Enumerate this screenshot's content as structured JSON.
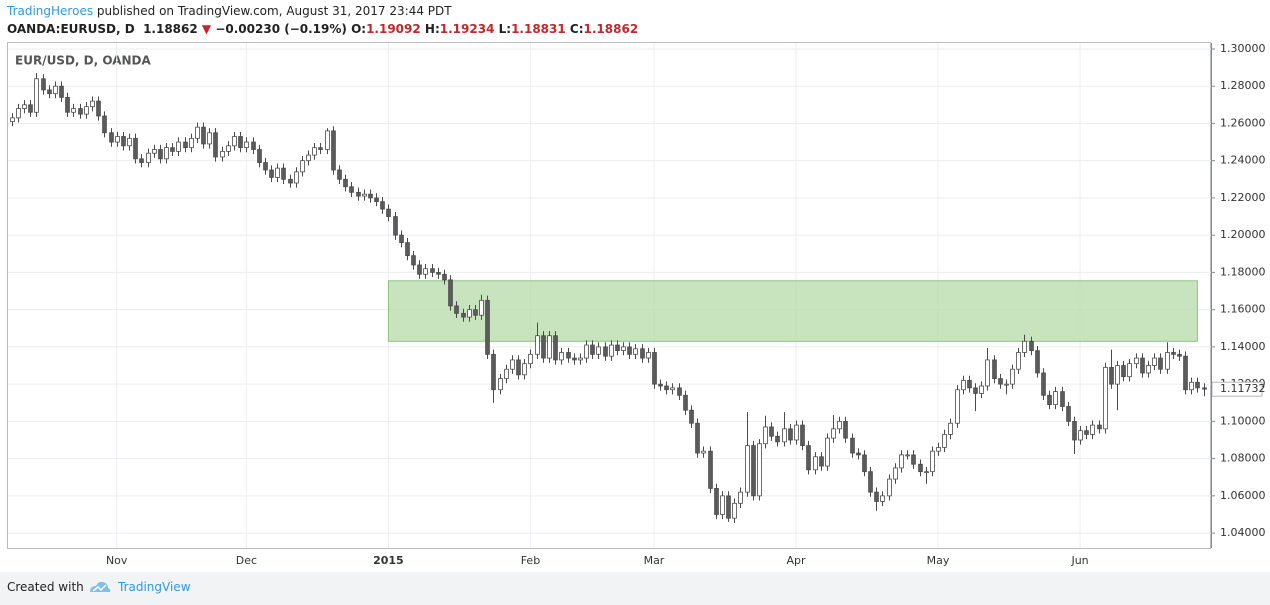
{
  "header": {
    "author": "TradingHeroes",
    "published": " published on TradingView.com, August 31, 2017 23:44 PDT",
    "symbol": "OANDA:EURUSD, D",
    "price": "1.18862",
    "change_arrow": "▼",
    "change": "−0.00230 (−0.19%)",
    "open_label": "O:",
    "open": "1.19092",
    "high_label": "H:",
    "high": "1.19234",
    "low_label": "L:",
    "low": "1.18831",
    "close_label": "C:",
    "close": "1.18862"
  },
  "footer": {
    "created_with": "Created with",
    "brand": "TradingView"
  },
  "chart_data": {
    "type": "candlestick",
    "title": "EUR/USD, D, OANDA",
    "up_color": "#ffffff",
    "down_color": "#5b5b5b",
    "outline_color": "#4a4a4a",
    "grid": true,
    "xlim": [
      -0.6,
      194.2
    ],
    "ylim": [
      1.032,
      1.3032
    ],
    "xticks": [
      {
        "value": 17,
        "label": "Nov"
      },
      {
        "value": 38,
        "label": "Dec"
      },
      {
        "value": 61,
        "label": "2015"
      },
      {
        "value": 84,
        "label": "Feb"
      },
      {
        "value": 104,
        "label": "Mar"
      },
      {
        "value": 127,
        "label": "Apr"
      },
      {
        "value": 150,
        "label": "May"
      },
      {
        "value": 173,
        "label": "Jun"
      }
    ],
    "yticks": [
      {
        "value": 1.04,
        "label": "1.04000"
      },
      {
        "value": 1.06,
        "label": "1.06000"
      },
      {
        "value": 1.08,
        "label": "1.08000"
      },
      {
        "value": 1.1,
        "label": "1.10000"
      },
      {
        "value": 1.12,
        "label": "1.12000"
      },
      {
        "value": 1.14,
        "label": "1.14000"
      },
      {
        "value": 1.16,
        "label": "1.16000"
      },
      {
        "value": 1.18,
        "label": "1.18000"
      },
      {
        "value": 1.2,
        "label": "1.20000"
      },
      {
        "value": 1.22,
        "label": "1.22000"
      },
      {
        "value": 1.24,
        "label": "1.24000"
      },
      {
        "value": 1.26,
        "label": "1.26000"
      },
      {
        "value": 1.28,
        "label": "1.28000"
      },
      {
        "value": 1.3,
        "label": "1.30000"
      }
    ],
    "highlight_zone": {
      "x_range": [
        61,
        192
      ],
      "price_range": [
        1.143,
        1.1755
      ],
      "color": "#b5dba8"
    },
    "open": [
      1.261,
      1.263,
      1.268,
      1.27,
      1.266,
      1.284,
      1.278,
      1.276,
      1.28,
      1.274,
      1.266,
      1.268,
      1.265,
      1.269,
      1.272,
      1.264,
      1.255,
      1.25,
      1.253,
      1.248,
      1.252,
      1.241,
      1.239,
      1.244,
      1.246,
      1.241,
      1.247,
      1.245,
      1.25,
      1.247,
      1.252,
      1.258,
      1.249,
      1.255,
      1.242,
      1.245,
      1.248,
      1.253,
      1.247,
      1.25,
      1.246,
      1.239,
      1.235,
      1.231,
      1.236,
      1.23,
      1.228,
      1.234,
      1.24,
      1.243,
      1.247,
      1.246,
      1.256,
      1.235,
      1.23,
      1.226,
      1.223,
      1.221,
      1.222,
      1.22,
      1.218,
      1.214,
      1.21,
      1.2,
      1.196,
      1.189,
      1.184,
      1.179,
      1.182,
      1.18,
      1.179,
      1.176,
      1.162,
      1.158,
      1.156,
      1.16,
      1.157,
      1.165,
      1.136,
      1.117,
      1.123,
      1.128,
      1.133,
      1.125,
      1.131,
      1.136,
      1.146,
      1.134,
      1.146,
      1.133,
      1.137,
      1.134,
      1.133,
      1.134,
      1.141,
      1.136,
      1.14,
      1.135,
      1.141,
      1.138,
      1.14,
      1.136,
      1.139,
      1.134,
      1.137,
      1.12,
      1.119,
      1.117,
      1.118,
      1.114,
      1.106,
      1.099,
      1.083,
      1.084,
      1.064,
      1.05,
      1.06,
      1.048,
      1.056,
      1.062,
      1.087,
      1.06,
      1.088,
      1.097,
      1.092,
      1.089,
      1.096,
      1.09,
      1.098,
      1.087,
      1.074,
      1.081,
      1.076,
      1.091,
      1.096,
      1.1,
      1.091,
      1.083,
      1.082,
      1.073,
      1.062,
      1.057,
      1.06,
      1.069,
      1.075,
      1.082,
      1.082,
      1.077,
      1.073,
      1.073,
      1.084,
      1.086,
      1.093,
      1.099,
      1.117,
      1.122,
      1.118,
      1.115,
      1.119,
      1.133,
      1.123,
      1.12,
      1.12,
      1.128,
      1.137,
      1.143,
      1.138,
      1.126,
      1.114,
      1.109,
      1.116,
      1.108,
      1.1,
      1.09,
      1.095,
      1.093,
      1.098,
      1.096,
      1.129,
      1.12,
      1.13,
      1.124,
      1.131,
      1.134,
      1.126,
      1.13,
      1.134,
      1.128,
      1.137,
      1.136,
      1.135,
      1.117,
      1.121,
      1.118
    ],
    "high": [
      1.2655,
      1.2705,
      1.2725,
      1.2725,
      1.287,
      1.2865,
      1.2805,
      1.2825,
      1.2825,
      1.2765,
      1.2705,
      1.2705,
      1.2715,
      1.2745,
      1.2745,
      1.2665,
      1.2575,
      1.2555,
      1.2555,
      1.2545,
      1.2545,
      1.2435,
      1.2465,
      1.2485,
      1.2485,
      1.2495,
      1.2495,
      1.2525,
      1.2525,
      1.2545,
      1.2605,
      1.2605,
      1.2575,
      1.2575,
      1.2475,
      1.2505,
      1.2555,
      1.2555,
      1.2525,
      1.2525,
      1.2485,
      1.2415,
      1.2375,
      1.2385,
      1.2385,
      1.2325,
      1.2365,
      1.2425,
      1.2455,
      1.2495,
      1.2495,
      1.2575,
      1.2585,
      1.2375,
      1.2325,
      1.2285,
      1.2255,
      1.2245,
      1.2245,
      1.2225,
      1.2205,
      1.2165,
      1.2125,
      1.2025,
      1.1985,
      1.1915,
      1.1865,
      1.1845,
      1.1845,
      1.1825,
      1.1815,
      1.1785,
      1.1645,
      1.1605,
      1.1625,
      1.1625,
      1.168,
      1.1675,
      1.1385,
      1.1255,
      1.1305,
      1.1355,
      1.1355,
      1.1335,
      1.1385,
      1.153,
      1.1485,
      1.1485,
      1.1485,
      1.1395,
      1.1395,
      1.1365,
      1.1365,
      1.1435,
      1.1435,
      1.1425,
      1.1425,
      1.1435,
      1.1435,
      1.1425,
      1.1425,
      1.1415,
      1.1415,
      1.1395,
      1.1395,
      1.1225,
      1.1215,
      1.1205,
      1.1205,
      1.1165,
      1.1085,
      1.1015,
      1.0865,
      1.0865,
      1.0665,
      1.0625,
      1.0625,
      1.0585,
      1.0645,
      1.105,
      1.0895,
      1.0905,
      1.103,
      1.0995,
      1.0945,
      1.105,
      1.0985,
      1.1005,
      1.1005,
      1.0895,
      1.0835,
      1.0835,
      1.0935,
      1.1035,
      1.1025,
      1.1025,
      1.0935,
      1.0855,
      1.0845,
      1.0755,
      1.0645,
      1.0625,
      1.0715,
      1.0775,
      1.0845,
      1.0845,
      1.0845,
      1.0795,
      1.0755,
      1.0865,
      1.0885,
      1.0955,
      1.1015,
      1.1195,
      1.1245,
      1.1245,
      1.1205,
      1.1215,
      1.1395,
      1.1355,
      1.1255,
      1.1225,
      1.1305,
      1.1395,
      1.1465,
      1.1455,
      1.1405,
      1.1285,
      1.1165,
      1.1185,
      1.1185,
      1.1105,
      1.1025,
      1.0975,
      1.0975,
      1.1005,
      1.1005,
      1.1315,
      1.1385,
      1.1325,
      1.1325,
      1.1335,
      1.1365,
      1.1365,
      1.1325,
      1.1365,
      1.1365,
      1.1425,
      1.1395,
      1.1385,
      1.1375,
      1.1235,
      1.1235,
      1.1205
    ],
    "low": [
      1.2585,
      1.2605,
      1.2655,
      1.2635,
      1.2635,
      1.2755,
      1.2735,
      1.2735,
      1.2715,
      1.2635,
      1.2635,
      1.2625,
      1.2625,
      1.2665,
      1.2615,
      1.2525,
      1.2475,
      1.2475,
      1.2455,
      1.2455,
      1.2385,
      1.2365,
      1.2365,
      1.2415,
      1.2385,
      1.2385,
      1.2425,
      1.2425,
      1.2445,
      1.2445,
      1.2495,
      1.2465,
      1.2465,
      1.2395,
      1.2395,
      1.2425,
      1.2455,
      1.2445,
      1.2445,
      1.2435,
      1.2365,
      1.2325,
      1.2285,
      1.2285,
      1.2275,
      1.2255,
      1.2255,
      1.2315,
      1.2375,
      1.2405,
      1.2435,
      1.2435,
      1.2325,
      1.2275,
      1.2235,
      1.2205,
      1.2185,
      1.2185,
      1.2175,
      1.2155,
      1.2115,
      1.2075,
      1.1975,
      1.1935,
      1.1865,
      1.1815,
      1.1765,
      1.1765,
      1.1775,
      1.1765,
      1.1735,
      1.1595,
      1.1555,
      1.1535,
      1.1535,
      1.1545,
      1.1545,
      1.1335,
      1.11,
      1.1145,
      1.1205,
      1.1255,
      1.1225,
      1.1225,
      1.1285,
      1.1335,
      1.1315,
      1.1315,
      1.1305,
      1.1305,
      1.1315,
      1.1305,
      1.1305,
      1.1315,
      1.1335,
      1.1335,
      1.1325,
      1.1325,
      1.1355,
      1.1355,
      1.1335,
      1.1335,
      1.1315,
      1.1315,
      1.1175,
      1.1165,
      1.1145,
      1.1145,
      1.1115,
      1.1035,
      1.0965,
      1.0805,
      1.0805,
      1.0615,
      1.0475,
      1.0475,
      1.046,
      1.0455,
      1.0535,
      1.0595,
      1.0575,
      1.0575,
      1.0855,
      1.0895,
      1.0865,
      1.0865,
      1.0875,
      1.0875,
      1.0845,
      1.0715,
      1.0715,
      1.0735,
      1.0735,
      1.0885,
      1.0935,
      1.0885,
      1.0805,
      1.0795,
      1.0705,
      1.0595,
      1.052,
      1.0545,
      1.0575,
      1.0665,
      1.0725,
      1.0795,
      1.0745,
      1.0705,
      1.0665,
      1.0705,
      1.0815,
      1.0835,
      1.0905,
      1.0965,
      1.1145,
      1.1155,
      1.1055,
      1.1125,
      1.1165,
      1.1205,
      1.1175,
      1.1145,
      1.1175,
      1.1255,
      1.1345,
      1.1355,
      1.1235,
      1.1115,
      1.1065,
      1.1065,
      1.1055,
      1.0975,
      1.0825,
      1.0875,
      1.0905,
      1.0905,
      1.0935,
      1.0935,
      1.1175,
      1.106,
      1.1215,
      1.1215,
      1.1285,
      1.1235,
      1.1235,
      1.1275,
      1.1255,
      1.1255,
      1.1335,
      1.1325,
      1.1145,
      1.1145,
      1.1155,
      1.1135
    ],
    "close": [
      1.263,
      1.268,
      1.27,
      1.266,
      1.284,
      1.278,
      1.276,
      1.28,
      1.274,
      1.266,
      1.268,
      1.265,
      1.269,
      1.272,
      1.264,
      1.255,
      1.25,
      1.253,
      1.248,
      1.252,
      1.241,
      1.239,
      1.244,
      1.246,
      1.241,
      1.247,
      1.245,
      1.25,
      1.247,
      1.252,
      1.258,
      1.249,
      1.255,
      1.242,
      1.245,
      1.248,
      1.253,
      1.247,
      1.25,
      1.246,
      1.239,
      1.235,
      1.231,
      1.236,
      1.23,
      1.228,
      1.234,
      1.24,
      1.243,
      1.247,
      1.246,
      1.256,
      1.235,
      1.23,
      1.226,
      1.223,
      1.221,
      1.222,
      1.22,
      1.218,
      1.214,
      1.21,
      1.2,
      1.196,
      1.189,
      1.184,
      1.179,
      1.182,
      1.18,
      1.179,
      1.176,
      1.162,
      1.158,
      1.156,
      1.16,
      1.157,
      1.165,
      1.136,
      1.117,
      1.123,
      1.128,
      1.133,
      1.125,
      1.131,
      1.136,
      1.146,
      1.134,
      1.146,
      1.133,
      1.137,
      1.134,
      1.133,
      1.134,
      1.141,
      1.136,
      1.14,
      1.135,
      1.141,
      1.138,
      1.14,
      1.136,
      1.139,
      1.134,
      1.137,
      1.12,
      1.119,
      1.117,
      1.118,
      1.114,
      1.106,
      1.099,
      1.083,
      1.084,
      1.064,
      1.05,
      1.06,
      1.048,
      1.056,
      1.062,
      1.087,
      1.06,
      1.088,
      1.097,
      1.092,
      1.089,
      1.096,
      1.09,
      1.098,
      1.087,
      1.074,
      1.081,
      1.076,
      1.091,
      1.096,
      1.1,
      1.091,
      1.083,
      1.082,
      1.073,
      1.062,
      1.057,
      1.06,
      1.069,
      1.075,
      1.082,
      1.082,
      1.077,
      1.073,
      1.073,
      1.084,
      1.086,
      1.093,
      1.099,
      1.117,
      1.122,
      1.118,
      1.115,
      1.119,
      1.133,
      1.123,
      1.12,
      1.12,
      1.128,
      1.137,
      1.143,
      1.138,
      1.126,
      1.114,
      1.109,
      1.116,
      1.108,
      1.1,
      1.09,
      1.095,
      1.093,
      1.098,
      1.096,
      1.129,
      1.12,
      1.13,
      1.124,
      1.131,
      1.134,
      1.126,
      1.13,
      1.134,
      1.128,
      1.137,
      1.136,
      1.135,
      1.117,
      1.121,
      1.118,
      1.11732
    ]
  }
}
